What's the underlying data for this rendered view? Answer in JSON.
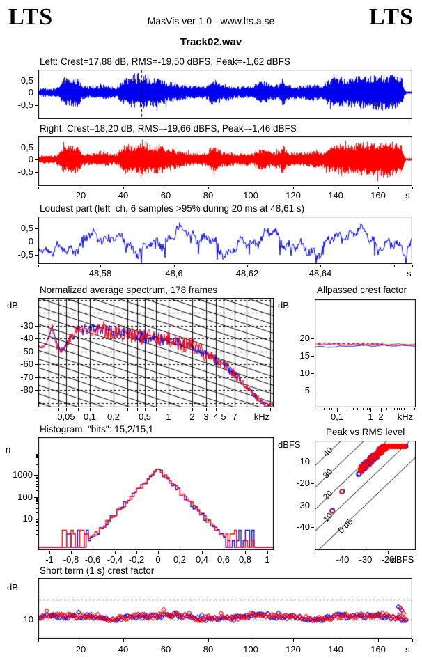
{
  "header": {
    "logo_left": "LTS",
    "logo_right": "LTS",
    "app_title": "MasVis ver 1.0 - www.lts.a.se",
    "track_title": "Track02.wav"
  },
  "colors": {
    "left_channel": "#0000ee",
    "right_channel": "#ff0000",
    "grid": "#000000",
    "text": "#000000",
    "background": "#ffffff"
  },
  "chart_data": [
    {
      "id": "wave_left",
      "type": "area",
      "title": "Left: Crest=17,88 dB, RMS=-19,50 dBFS, Peak=-1,62 dBFS",
      "stats": {
        "crest_db": "17,88",
        "rms_dbfs": "-19,50",
        "peak_dbfs": "-1,62"
      },
      "color": "#0000ee",
      "cursor_s": 48.61,
      "x": {
        "min": 0,
        "max": 176,
        "unit": "s"
      },
      "y": {
        "ticks": [
          {
            "v": 0.5,
            "label": "0,5"
          },
          {
            "v": 0,
            "label": "0"
          },
          {
            "v": -0.5,
            "label": "-0,5"
          }
        ]
      },
      "envelope": [
        [
          0,
          0.14
        ],
        [
          2,
          0.18
        ],
        [
          5,
          0.16
        ],
        [
          8,
          0.17
        ],
        [
          10,
          0.3
        ],
        [
          11,
          0.52
        ],
        [
          13,
          0.58
        ],
        [
          15,
          0.55
        ],
        [
          17,
          0.6
        ],
        [
          19,
          0.58
        ],
        [
          20,
          0.3
        ],
        [
          22,
          0.26
        ],
        [
          24,
          0.25
        ],
        [
          27,
          0.25
        ],
        [
          29,
          0.3
        ],
        [
          31,
          0.32
        ],
        [
          33,
          0.28
        ],
        [
          35,
          0.22
        ],
        [
          37,
          0.24
        ],
        [
          39,
          0.5
        ],
        [
          41,
          0.62
        ],
        [
          44,
          0.6
        ],
        [
          46,
          0.63
        ],
        [
          48,
          0.65
        ],
        [
          50,
          0.66
        ],
        [
          52,
          0.62
        ],
        [
          54,
          0.58
        ],
        [
          56,
          0.62
        ],
        [
          58,
          0.6
        ],
        [
          60,
          0.45
        ],
        [
          62,
          0.38
        ],
        [
          64,
          0.42
        ],
        [
          66,
          0.35
        ],
        [
          68,
          0.3
        ],
        [
          70,
          0.28
        ],
        [
          72,
          0.26
        ],
        [
          74,
          0.28
        ],
        [
          76,
          0.25
        ],
        [
          78,
          0.26
        ],
        [
          80,
          0.3
        ],
        [
          81,
          0.5
        ],
        [
          83,
          0.52
        ],
        [
          85,
          0.45
        ],
        [
          86,
          0.32
        ],
        [
          88,
          0.35
        ],
        [
          90,
          0.3
        ],
        [
          92,
          0.25
        ],
        [
          94,
          0.24
        ],
        [
          96,
          0.26
        ],
        [
          98,
          0.25
        ],
        [
          100,
          0.24
        ],
        [
          102,
          0.28
        ],
        [
          104,
          0.42
        ],
        [
          106,
          0.45
        ],
        [
          108,
          0.4
        ],
        [
          110,
          0.3
        ],
        [
          112,
          0.35
        ],
        [
          114,
          0.4
        ],
        [
          115,
          0.62
        ],
        [
          116,
          0.45
        ],
        [
          118,
          0.3
        ],
        [
          120,
          0.28
        ],
        [
          122,
          0.26
        ],
        [
          124,
          0.28
        ],
        [
          126,
          0.3
        ],
        [
          128,
          0.32
        ],
        [
          130,
          0.34
        ],
        [
          132,
          0.33
        ],
        [
          134,
          0.32
        ],
        [
          136,
          0.5
        ],
        [
          138,
          0.58
        ],
        [
          140,
          0.6
        ],
        [
          143,
          0.62
        ],
        [
          146,
          0.6
        ],
        [
          149,
          0.65
        ],
        [
          152,
          0.68
        ],
        [
          155,
          0.7
        ],
        [
          158,
          0.72
        ],
        [
          161,
          0.75
        ],
        [
          164,
          0.72
        ],
        [
          167,
          0.7
        ],
        [
          169,
          0.68
        ],
        [
          171,
          0.6
        ],
        [
          172,
          0.2
        ],
        [
          173,
          0.05
        ],
        [
          176,
          0.05
        ]
      ]
    },
    {
      "id": "wave_right",
      "type": "area",
      "title": "Right: Crest=18,20 dB, RMS=-19,66 dBFS, Peak=-1,46 dBFS",
      "stats": {
        "crest_db": "18,20",
        "rms_dbfs": "-19,66",
        "peak_dbfs": "-1,46"
      },
      "color": "#ff0000",
      "x": {
        "min": 0,
        "max": 176,
        "unit": "s",
        "ticks": [
          {
            "v": 20,
            "label": "20"
          },
          {
            "v": 40,
            "label": "40"
          },
          {
            "v": 60,
            "label": "60"
          },
          {
            "v": 80,
            "label": "80"
          },
          {
            "v": 100,
            "label": "100"
          },
          {
            "v": 120,
            "label": "120"
          },
          {
            "v": 140,
            "label": "140"
          },
          {
            "v": 160,
            "label": "160"
          }
        ]
      },
      "y": {
        "ticks": [
          {
            "v": 0.5,
            "label": "0,5"
          },
          {
            "v": 0,
            "label": "0"
          },
          {
            "v": -0.5,
            "label": "-0,5"
          }
        ]
      }
    },
    {
      "id": "loudest_part",
      "type": "line",
      "title": "Loudest part (left  ch, 6 samples >95% during 20 ms at 48,61 s)",
      "color": "#0000ee",
      "x": {
        "min": 48.563,
        "max": 48.665,
        "unit": "s",
        "ticks": [
          {
            "v": 48.58,
            "label": "48,58"
          },
          {
            "v": 48.6,
            "label": "48,6"
          },
          {
            "v": 48.62,
            "label": "48,62"
          },
          {
            "v": 48.64,
            "label": "48,64"
          },
          {
            "v": 48.66,
            "label": ""
          }
        ]
      },
      "y": {
        "ticks": [
          {
            "v": 0.5,
            "label": "0,5"
          },
          {
            "v": 0,
            "label": "0"
          },
          {
            "v": -0.5,
            "label": "-0,5"
          }
        ]
      },
      "synth": {
        "seed": 11,
        "peak_amp": 0.8
      }
    },
    {
      "id": "spectrum",
      "type": "line",
      "title": "Normalized average spectrum, 178 frames",
      "x": {
        "log": true,
        "min": 0.022,
        "max": 22,
        "unit": "kHz",
        "gridlines": [
          0.03,
          0.04,
          0.05,
          0.07,
          0.1,
          0.2,
          0.3,
          0.4,
          0.5,
          0.7,
          1,
          2,
          3,
          4,
          5,
          7,
          10,
          20
        ],
        "ticks": [
          {
            "v": 0.05,
            "label": "0,05"
          },
          {
            "v": 0.1,
            "label": "0,1"
          },
          {
            "v": 0.2,
            "label": "0,2"
          },
          {
            "v": 0.5,
            "label": "0,5"
          },
          {
            "v": 1,
            "label": "1"
          },
          {
            "v": 2,
            "label": "2"
          },
          {
            "v": 3,
            "label": "3"
          },
          {
            "v": 4,
            "label": "4"
          },
          {
            "v": 5,
            "label": "5"
          },
          {
            "v": 7,
            "label": "7"
          }
        ]
      },
      "y": {
        "label": "dB",
        "min": -93.5,
        "max": -8.5,
        "ticks": [
          {
            "v": -30,
            "label": "-30"
          },
          {
            "v": -40,
            "label": "-40"
          },
          {
            "v": -50,
            "label": "-50"
          },
          {
            "v": -60,
            "label": "-60"
          },
          {
            "v": -70,
            "label": "-70"
          },
          {
            "v": -80,
            "label": "-80"
          }
        ],
        "dashed_lines": [
          -10,
          -20,
          -30,
          -40,
          -50,
          -60,
          -70,
          -80,
          -90
        ]
      },
      "series": [
        {
          "name": "left",
          "color": "#0000ee",
          "seed": 33
        },
        {
          "name": "right",
          "color": "#ff0000",
          "seed": 77
        }
      ],
      "points": [
        [
          0.022,
          -46
        ],
        [
          0.025,
          -47
        ],
        [
          0.028,
          -44
        ],
        [
          0.03,
          -38
        ],
        [
          0.032,
          -31
        ],
        [
          0.034,
          -33
        ],
        [
          0.038,
          -45
        ],
        [
          0.042,
          -50
        ],
        [
          0.046,
          -48
        ],
        [
          0.05,
          -44
        ],
        [
          0.055,
          -41
        ],
        [
          0.06,
          -38
        ],
        [
          0.065,
          -35
        ],
        [
          0.07,
          -33
        ],
        [
          0.08,
          -34
        ],
        [
          0.09,
          -32
        ],
        [
          0.1,
          -34
        ],
        [
          0.12,
          -32
        ],
        [
          0.15,
          -33
        ],
        [
          0.2,
          -35
        ],
        [
          0.25,
          -36
        ],
        [
          0.3,
          -36
        ],
        [
          0.4,
          -38
        ],
        [
          0.5,
          -39
        ],
        [
          0.7,
          -40
        ],
        [
          1,
          -41
        ],
        [
          1.5,
          -44
        ],
        [
          2,
          -46
        ],
        [
          2.5,
          -49
        ],
        [
          3,
          -52
        ],
        [
          4,
          -56
        ],
        [
          5,
          -60
        ],
        [
          6,
          -64
        ],
        [
          7,
          -68
        ],
        [
          8,
          -72
        ],
        [
          10,
          -78
        ],
        [
          12,
          -83
        ],
        [
          14,
          -87
        ],
        [
          17,
          -91
        ],
        [
          20,
          -93
        ]
      ]
    },
    {
      "id": "allpassed_crest_factor",
      "type": "line",
      "title": "Allpassed crest factor",
      "x": {
        "log": true,
        "min": 0.022,
        "max": 22,
        "unit": "kHz",
        "ticks": [
          {
            "v": 0.1,
            "label": "0,1"
          },
          {
            "v": 1,
            "label": "1"
          },
          {
            "v": 2,
            "label": "2"
          }
        ],
        "minor": [
          0.03,
          0.04,
          0.05,
          0.06,
          0.07,
          0.08,
          0.09,
          0.2,
          0.3,
          0.4,
          0.5,
          0.6,
          0.7,
          0.8,
          0.9,
          3,
          4,
          5,
          6,
          7,
          8,
          9,
          10,
          20
        ]
      },
      "y": {
        "label": "dB",
        "min": 0,
        "max": 31.2,
        "ticks": [
          {
            "v": 20,
            "label": "20"
          },
          {
            "v": 15,
            "label": "15"
          },
          {
            "v": 10,
            "label": "10"
          },
          {
            "v": 5,
            "label": "5"
          }
        ]
      },
      "series": [
        {
          "name": "left solid",
          "color": "#0000ee",
          "dash": false,
          "level_db": 17.9
        },
        {
          "name": "right solid",
          "color": "#ff0000",
          "dash": false,
          "level_db": 18.3
        },
        {
          "name": "left dashed",
          "color": "#0000ee",
          "dash": true,
          "level_db": 18.5
        },
        {
          "name": "right dashed",
          "color": "#ff0000",
          "dash": true,
          "level_db": 18.6
        }
      ]
    },
    {
      "id": "histogram",
      "type": "bar",
      "title": "Histogram, \"bits\": 15,2/15,1",
      "bits": "15,2/15,1",
      "x": {
        "min": -1.1,
        "max": 1.06,
        "ticks": [
          {
            "v": -1,
            "label": "-1"
          },
          {
            "v": -0.8,
            "label": "-0,8"
          },
          {
            "v": -0.6,
            "label": "-0,6"
          },
          {
            "v": -0.4,
            "label": "-0,4"
          },
          {
            "v": -0.2,
            "label": "-0,2"
          },
          {
            "v": 0,
            "label": "0"
          },
          {
            "v": 0.2,
            "label": "0,2"
          },
          {
            "v": 0.4,
            "label": "0,4"
          },
          {
            "v": 0.6,
            "label": "0,6"
          },
          {
            "v": 0.8,
            "label": "0,8"
          },
          {
            "v": 1,
            "label": "1"
          }
        ]
      },
      "y": {
        "label": "n",
        "log": true,
        "ticks": [
          {
            "v": 1000,
            "label": "1000"
          },
          {
            "v": 100,
            "label": "100"
          },
          {
            "v": 10,
            "label": "10"
          }
        ]
      },
      "shape": {
        "peak_n": 1800,
        "zero_at": 0.63,
        "tail_end": 0.88,
        "bin_width": 0.02
      },
      "series": [
        {
          "name": "left",
          "color": "#0000ee",
          "seed": 5
        },
        {
          "name": "right",
          "color": "#ff0000",
          "seed": 9
        }
      ]
    },
    {
      "id": "peak_vs_rms",
      "type": "scatter",
      "title": "Peak vs RMS level",
      "x": {
        "min": -52,
        "max": -8,
        "unit": "dBFS",
        "ticks": [
          {
            "v": -40,
            "label": "-40"
          },
          {
            "v": -30,
            "label": "-30"
          },
          {
            "v": -20,
            "label": "-20"
          }
        ]
      },
      "y": {
        "label": "dBFS",
        "min": -50.5,
        "max": -0.5,
        "ticks": [
          {
            "v": -10,
            "label": "-10"
          },
          {
            "v": -20,
            "label": "-20"
          },
          {
            "v": -30,
            "label": "-30"
          },
          {
            "v": -40,
            "label": "-40"
          }
        ]
      },
      "guides": [
        {
          "offset_db": 40,
          "label": "40"
        },
        {
          "offset_db": 30,
          "label": "30"
        },
        {
          "offset_db": 20,
          "label": "20"
        },
        {
          "offset_db": 10,
          "label": "10"
        },
        {
          "offset_db": 0,
          "label": "0 dB"
        }
      ],
      "cluster": {
        "rms_range": [
          -34,
          -12.8
        ],
        "crest_mean_db": 18,
        "n_points": 140
      },
      "outliers": [
        [
          -40.5,
          -23.5
        ],
        [
          -44.8,
          -32.3
        ]
      ],
      "series": [
        {
          "name": "left",
          "color": "#0000ee",
          "seed": 41
        },
        {
          "name": "right",
          "color": "#ff0000",
          "seed": 59
        }
      ]
    },
    {
      "id": "short_term_crest_factor",
      "type": "scatter",
      "title": "Short term (1 s) crest factor",
      "x": {
        "min": 0,
        "max": 176,
        "unit": "s",
        "ticks": [
          {
            "v": 20,
            "label": "20"
          },
          {
            "v": 40,
            "label": "40"
          },
          {
            "v": 60,
            "label": "60"
          },
          {
            "v": 80,
            "label": "80"
          },
          {
            "v": 100,
            "label": "100"
          },
          {
            "v": 120,
            "label": "120"
          },
          {
            "v": 140,
            "label": "140"
          },
          {
            "v": 160,
            "label": "160"
          }
        ]
      },
      "y": {
        "label": "dB",
        "min": 0,
        "max": 30.8,
        "ticks": [
          {
            "v": 10,
            "label": "10"
          }
        ],
        "dashed_lines": [
          10,
          20
        ]
      },
      "cluster": {
        "mean_db": 12,
        "spread_db": 2.2,
        "n_seconds": 173,
        "end_spike_db": 16.5
      },
      "series": [
        {
          "name": "left",
          "color": "#0000ee",
          "seed": 101
        },
        {
          "name": "right",
          "color": "#ff0000",
          "seed": 103
        }
      ]
    }
  ]
}
